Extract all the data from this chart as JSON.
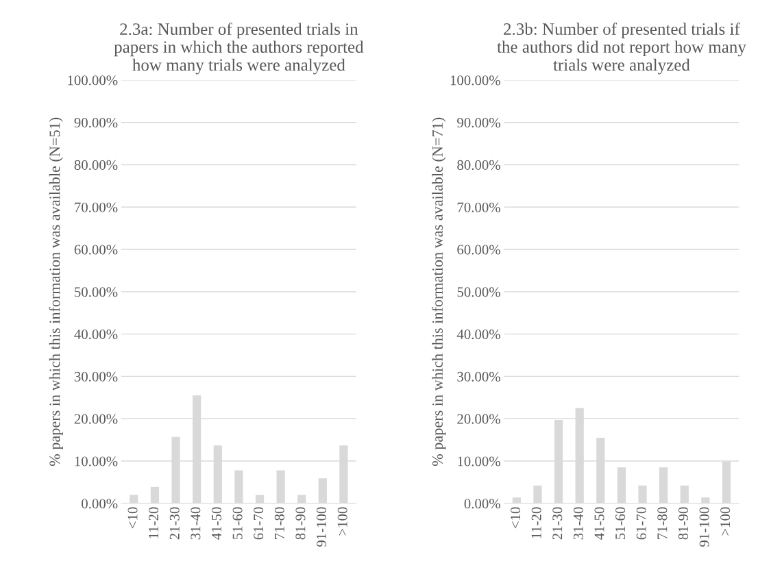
{
  "chart_data": [
    {
      "type": "bar",
      "title": "2.3a: Number of presented trials in\npapers in which the authors reported\nhow many trials were analyzed",
      "ylabel": "% papers in which this information was available (N=51)",
      "categories": [
        "<10",
        "11-20",
        "21-30",
        "31-40",
        "41-50",
        "51-60",
        "61-70",
        "71-80",
        "81-90",
        "91-100",
        ">100"
      ],
      "values": [
        2.0,
        3.9,
        15.7,
        25.5,
        13.7,
        7.8,
        2.0,
        7.8,
        2.0,
        5.9,
        13.7
      ],
      "color": "#d9d9d9",
      "ylim": [
        0,
        100
      ],
      "yticks": [
        {
          "value": 0,
          "label": "0.00%"
        },
        {
          "value": 10,
          "label": "10.00%"
        },
        {
          "value": 20,
          "label": "20.00%"
        },
        {
          "value": 30,
          "label": "30.00%"
        },
        {
          "value": 40,
          "label": "40.00%"
        },
        {
          "value": 50,
          "label": "50.00%"
        },
        {
          "value": 60,
          "label": "60.00%"
        },
        {
          "value": 70,
          "label": "70.00%"
        },
        {
          "value": 80,
          "label": "80.00%"
        },
        {
          "value": 90,
          "label": "90.00%"
        },
        {
          "value": 100,
          "label": "100.00%"
        }
      ],
      "grid": "y",
      "legend": false
    },
    {
      "type": "bar",
      "title": "2.3b: Number of presented trials if\nthe authors did not report how many\ntrials were analyzed",
      "ylabel": "% papers in which this information was available (N=71)",
      "categories": [
        "<10",
        "11-20",
        "21-30",
        "31-40",
        "41-50",
        "51-60",
        "61-70",
        "71-80",
        "81-90",
        "91-100",
        ">100"
      ],
      "values": [
        1.4,
        4.2,
        19.7,
        22.5,
        15.5,
        8.5,
        4.2,
        8.5,
        4.2,
        1.4,
        9.9
      ],
      "color": "#d9d9d9",
      "ylim": [
        0,
        100
      ],
      "yticks": [
        {
          "value": 0,
          "label": "0.00%"
        },
        {
          "value": 10,
          "label": "10.00%"
        },
        {
          "value": 20,
          "label": "20.00%"
        },
        {
          "value": 30,
          "label": "30.00%"
        },
        {
          "value": 40,
          "label": "40.00%"
        },
        {
          "value": 50,
          "label": "50.00%"
        },
        {
          "value": 60,
          "label": "60.00%"
        },
        {
          "value": 70,
          "label": "70.00%"
        },
        {
          "value": 80,
          "label": "80.00%"
        },
        {
          "value": 90,
          "label": "90.00%"
        },
        {
          "value": 100,
          "label": "100.00%"
        }
      ],
      "grid": "y",
      "legend": false
    }
  ]
}
